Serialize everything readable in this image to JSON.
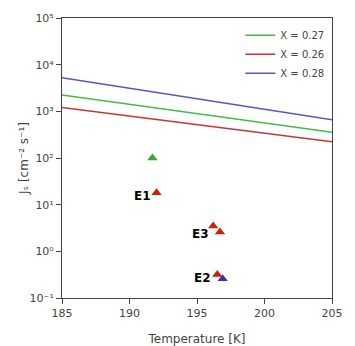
{
  "chart_data": {
    "type": "line",
    "xlabel": "Temperature [K]",
    "ylabel": "Jₛ [cm⁻² s⁻¹]",
    "log": "y",
    "grid": false,
    "legend": "upper right",
    "xlim": [
      185,
      205
    ],
    "xticks": [
      185,
      190,
      195,
      200,
      205
    ],
    "ylim": [
      0.1,
      100000
    ],
    "yticks": [
      {
        "value": 0.1,
        "label": "10⁻¹"
      },
      {
        "value": 1,
        "label": "10⁰"
      },
      {
        "value": 10,
        "label": "10¹"
      },
      {
        "value": 100,
        "label": "10²"
      },
      {
        "value": 1000,
        "label": "10³"
      },
      {
        "value": 10000,
        "label": "10⁴"
      },
      {
        "value": 100000,
        "label": "10⁵"
      }
    ],
    "series": [
      {
        "name": "X = 0.27",
        "type": "line",
        "color": "#44bb44",
        "x": [
          185,
          205
        ],
        "values": [
          2238.72114,
          354.813389
        ]
      },
      {
        "name": "X = 0.26",
        "type": "line",
        "color": "#cc3333",
        "x": [
          185,
          205
        ],
        "values": [
          1202.26443,
          223.872114
        ]
      },
      {
        "name": "X = 0.28",
        "type": "line",
        "color": "#5555cc",
        "x": [
          185,
          205
        ],
        "values": [
          5248.0746,
          660.693448
        ]
      },
      {
        "type": "scatter",
        "marker": "triangle-up",
        "colors": [
          "#33aa33",
          "#cc2200",
          "#cc2200",
          "#cc2200",
          "#cc2200",
          "#3333bb"
        ],
        "x": [
          191.7,
          192.0,
          196.2,
          196.7,
          196.5,
          196.9
        ],
        "values": [
          100.0,
          18.0,
          3.5,
          2.6,
          0.32,
          0.26
        ]
      }
    ],
    "annotations": [
      {
        "text": "E1",
        "x": 190.2,
        "y": 15.1356125
      },
      {
        "text": "E3",
        "x": 194.5,
        "y": 2.39883292
      },
      {
        "text": "E2",
        "x": 194.6,
        "y": 0.26915348
      }
    ]
  }
}
